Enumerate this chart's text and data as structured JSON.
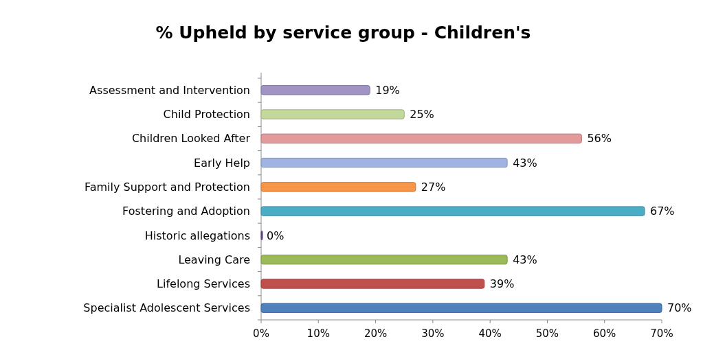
{
  "chart_data": {
    "type": "bar",
    "orientation": "horizontal",
    "title": "% Upheld by service group - Children's",
    "categories": [
      "Assessment and Intervention",
      "Child Protection",
      "Children Looked After",
      "Early Help",
      "Family Support and Protection",
      "Fostering and Adoption",
      "Historic allegations",
      "Leaving Care",
      "Lifelong Services",
      "Specialist Adolescent Services"
    ],
    "values": [
      19,
      25,
      56,
      43,
      27,
      67,
      0,
      43,
      39,
      70
    ],
    "colors": [
      "#a194c4",
      "#c3d89b",
      "#e29a9a",
      "#9fb4e0",
      "#f79646",
      "#4bacc6",
      "#5f4b8b",
      "#9bbb59",
      "#c0504d",
      "#4f81bd"
    ],
    "value_labels": [
      "19%",
      "25%",
      "56%",
      "43%",
      "27%",
      "67%",
      "0%",
      "43%",
      "39%",
      "70%"
    ],
    "xlim": [
      0,
      70
    ],
    "xticks": [
      {
        "value": 0,
        "label": "0%"
      },
      {
        "value": 10,
        "label": "10%"
      },
      {
        "value": 20,
        "label": "20%"
      },
      {
        "value": 30,
        "label": "30%"
      },
      {
        "value": 40,
        "label": "40%"
      },
      {
        "value": 50,
        "label": "50%"
      },
      {
        "value": 60,
        "label": "60%"
      },
      {
        "value": 70,
        "label": "70%"
      }
    ],
    "grid": false
  }
}
